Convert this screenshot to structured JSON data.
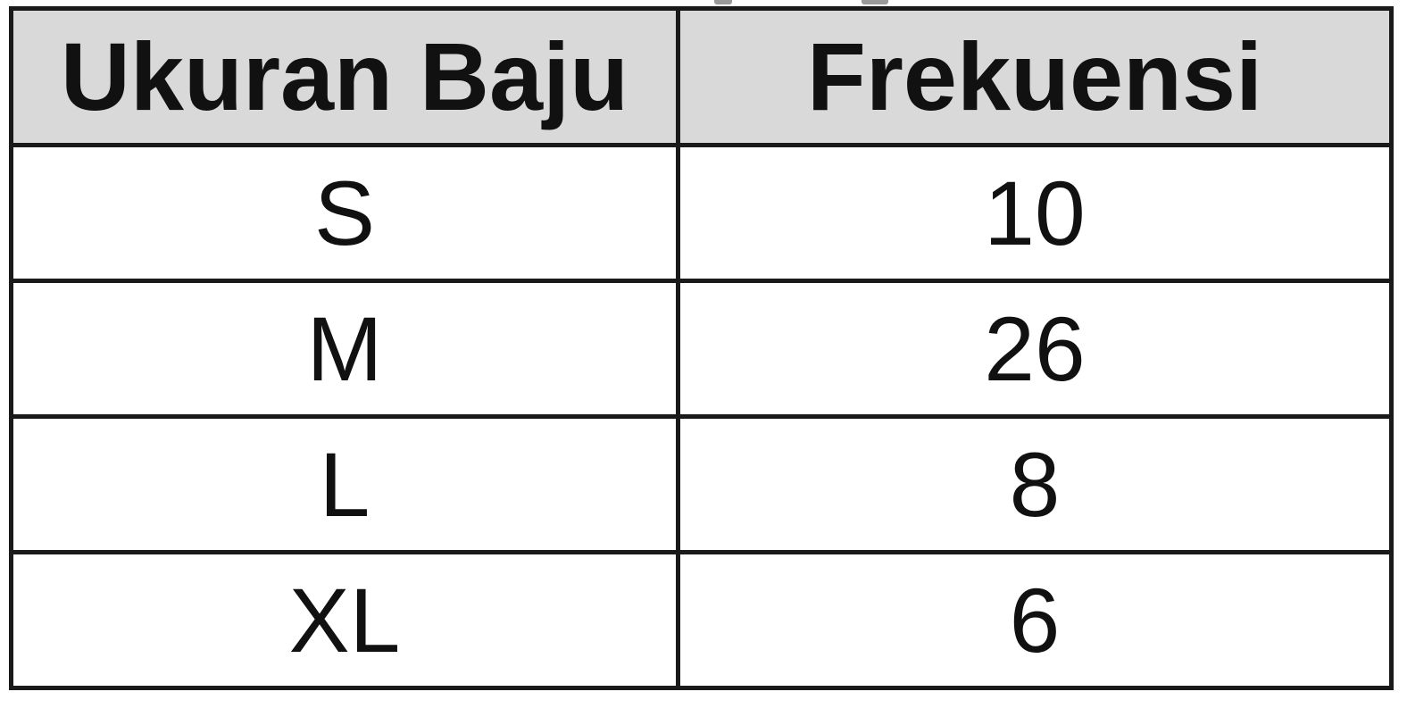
{
  "chart_data": {
    "type": "table",
    "columns": [
      "Ukuran Baju",
      "Frekuensi"
    ],
    "rows": [
      {
        "ukuran": "S",
        "frekuensi": "10"
      },
      {
        "ukuran": "M",
        "frekuensi": "26"
      },
      {
        "ukuran": "L",
        "frekuensi": "8"
      },
      {
        "ukuran": "XL",
        "frekuensi": "6"
      }
    ]
  }
}
